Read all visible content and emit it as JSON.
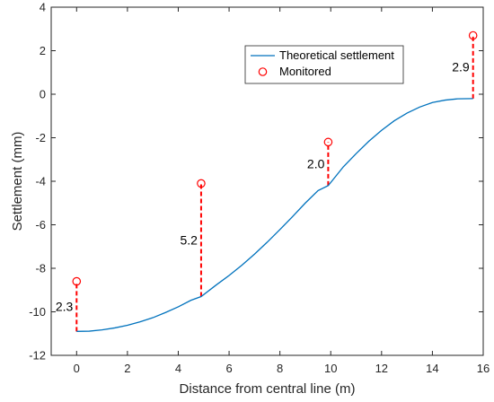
{
  "chart_data": {
    "type": "line",
    "xlabel": "Distance from central line (m)",
    "ylabel": "Settlement (mm)",
    "xlim": [
      -1,
      16
    ],
    "ylim": [
      -12,
      4
    ],
    "xticks": [
      "0",
      "2",
      "4",
      "6",
      "8",
      "10",
      "12",
      "14",
      "16"
    ],
    "yticks": [
      "-12",
      "-10",
      "-8",
      "-6",
      "-4",
      "-2",
      "0",
      "2",
      "4"
    ],
    "grid": false,
    "legend_position": "top-right",
    "series": [
      {
        "name": "Theoretical settlement",
        "style": "line",
        "color": "#0072BD",
        "x": [
          0,
          0.5,
          1,
          1.5,
          2,
          2.5,
          3,
          3.5,
          4,
          4.5,
          4.9,
          5.5,
          6,
          6.5,
          7,
          7.5,
          8,
          8.5,
          9,
          9.5,
          9.9,
          10.5,
          11,
          11.5,
          12,
          12.5,
          13,
          13.5,
          14,
          14.5,
          15,
          15.6
        ],
        "y": [
          -10.9,
          -10.89,
          -10.83,
          -10.74,
          -10.62,
          -10.46,
          -10.27,
          -10.03,
          -9.77,
          -9.47,
          -9.3,
          -8.76,
          -8.33,
          -7.86,
          -7.35,
          -6.8,
          -6.22,
          -5.62,
          -5.0,
          -4.43,
          -4.2,
          -3.33,
          -2.73,
          -2.16,
          -1.66,
          -1.22,
          -0.87,
          -0.59,
          -0.38,
          -0.27,
          -0.21,
          -0.2
        ]
      },
      {
        "name": "Monitored",
        "style": "marker",
        "color": "#FF0000",
        "x": [
          0,
          4.9,
          9.9,
          15.6
        ],
        "y": [
          -8.6,
          -4.1,
          -2.2,
          2.7
        ]
      }
    ],
    "differences": [
      {
        "x": 0,
        "y_from": -10.9,
        "y_to": -8.6,
        "label": "2.3"
      },
      {
        "x": 4.9,
        "y_from": -9.3,
        "y_to": -4.1,
        "label": "5.2"
      },
      {
        "x": 9.9,
        "y_from": -4.2,
        "y_to": -2.2,
        "label": "2.0"
      },
      {
        "x": 15.6,
        "y_from": -0.2,
        "y_to": 2.7,
        "label": "2.9"
      }
    ]
  }
}
